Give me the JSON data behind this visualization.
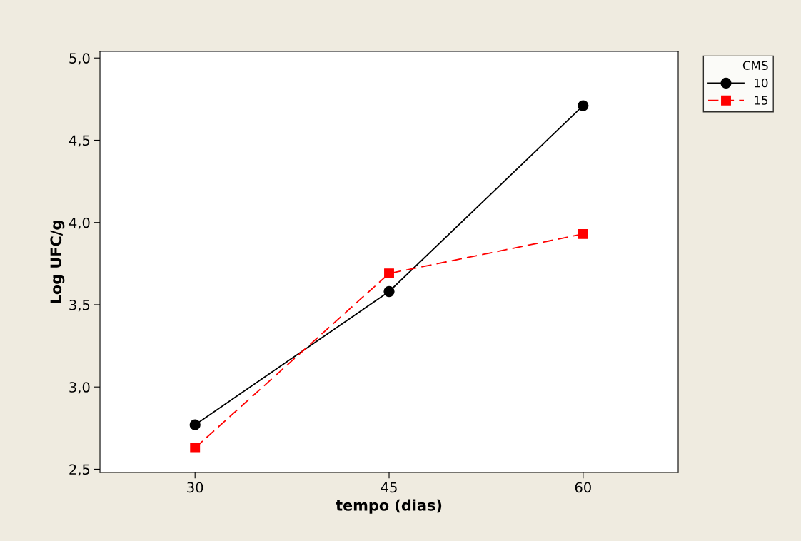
{
  "chart_data": {
    "type": "line",
    "xlabel": "tempo (dias)",
    "ylabel": "Log UFC/g",
    "legend_title": "CMS",
    "categories": [
      "30",
      "45",
      "60"
    ],
    "series": [
      {
        "name": "10",
        "color": "#000000",
        "values": [
          2.77,
          3.58,
          4.71
        ],
        "marker": "circle",
        "line_style": "solid"
      },
      {
        "name": "15",
        "color": "#ff0000",
        "values": [
          2.63,
          3.69,
          3.93
        ],
        "marker": "square",
        "line_style": "dashed"
      }
    ],
    "ylim": [
      2.48,
      5.04
    ],
    "yticks": [
      {
        "value": 2.5,
        "label": "2,5"
      },
      {
        "value": 3.0,
        "label": "3,0"
      },
      {
        "value": 3.5,
        "label": "3,5"
      },
      {
        "value": 4.0,
        "label": "4,0"
      },
      {
        "value": 4.5,
        "label": "4,5"
      },
      {
        "value": 5.0,
        "label": "5,0"
      }
    ],
    "grid": false,
    "legend": "right"
  }
}
